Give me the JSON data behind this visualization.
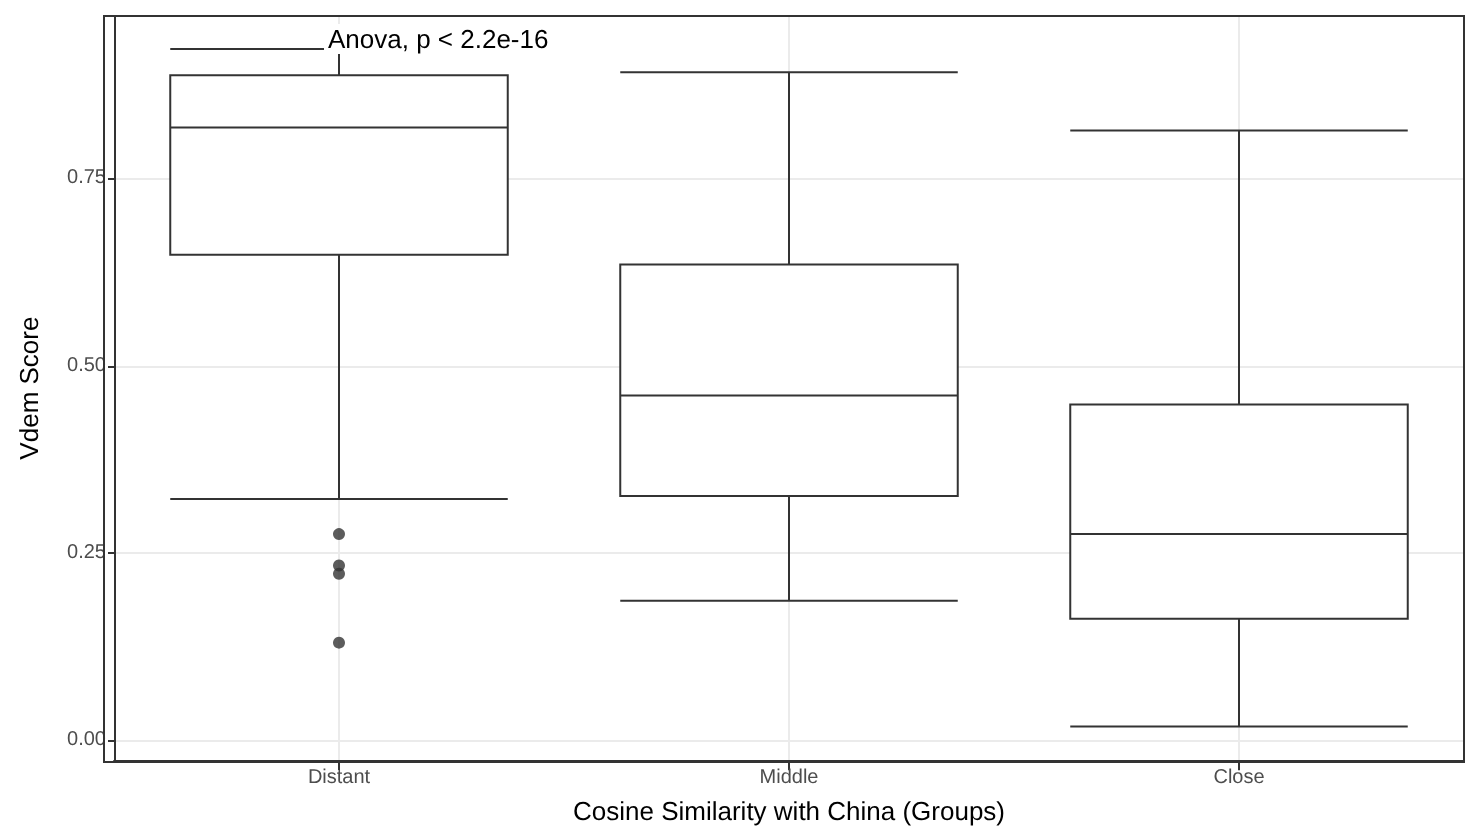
{
  "chart_data": {
    "type": "box",
    "xlabel": "Cosine Similarity with China (Groups)",
    "ylabel": "Vdem Score",
    "categories": [
      "Distant",
      "Middle",
      "Close"
    ],
    "boxes": [
      {
        "low": 0.322,
        "q1": 0.648,
        "median": 0.818,
        "q3": 0.888,
        "high": 0.923,
        "outliers": [
          0.275,
          0.233,
          0.222,
          0.13
        ]
      },
      {
        "low": 0.186,
        "q1": 0.326,
        "median": 0.46,
        "q3": 0.635,
        "high": 0.892
      },
      {
        "low": 0.018,
        "q1": 0.162,
        "median": 0.275,
        "q3": 0.448,
        "high": 0.814
      }
    ],
    "color": "#333333",
    "ylim": [
      -0.027,
      0.967
    ],
    "yticks": [
      {
        "value": 0,
        "label": "0.00"
      },
      {
        "value": 0.25,
        "label": "0.25"
      },
      {
        "value": 0.5,
        "label": "0.50"
      },
      {
        "value": 0.75,
        "label": "0.75"
      }
    ],
    "annotations": [
      "Anova, p < 2.2e-16"
    ],
    "grid": true
  }
}
